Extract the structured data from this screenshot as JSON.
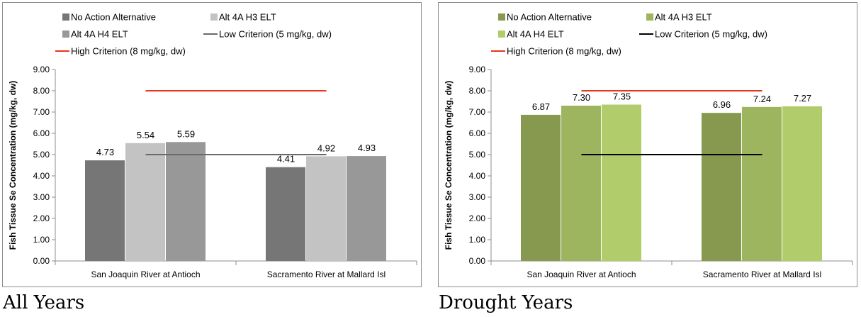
{
  "chart_data": [
    {
      "type": "bar",
      "title": "",
      "caption": "All Years",
      "xlabel": "",
      "ylabel": "Fish Tissue Se Concentration (mg/kg, dw)",
      "ylim": [
        0,
        9
      ],
      "yticks": [
        "0.00",
        "1.00",
        "2.00",
        "3.00",
        "4.00",
        "5.00",
        "6.00",
        "7.00",
        "8.00",
        "9.00"
      ],
      "categories": [
        "San Joaquin River at Antioch",
        "Sacramento River at Mallard Isl"
      ],
      "series": [
        {
          "name": "No Action Alternative",
          "values": [
            4.73,
            4.41
          ],
          "labels": [
            "4.73",
            "4.41"
          ],
          "color": "#767676"
        },
        {
          "name": "Alt 4A H3 ELT",
          "values": [
            5.54,
            4.92
          ],
          "labels": [
            "5.54",
            "4.92"
          ],
          "color": "#c3c3c3"
        },
        {
          "name": "Alt 4A H4 ELT",
          "values": [
            5.59,
            4.93
          ],
          "labels": [
            "5.59",
            "4.93"
          ],
          "color": "#989898"
        }
      ],
      "lines": [
        {
          "name": "Low Criterion (5 mg/kg, dw)",
          "value": 5,
          "color": "#6a6a6a"
        },
        {
          "name": "High Criterion (8 mg/kg, dw)",
          "value": 8,
          "color": "#e8361c"
        }
      ],
      "legend": "top",
      "grid": false
    },
    {
      "type": "bar",
      "title": "",
      "caption": "Drought Years",
      "xlabel": "",
      "ylabel": "Fish Tissue Se Concentration (mg/kg, dw)",
      "ylim": [
        0,
        9
      ],
      "yticks": [
        "0.00",
        "1.00",
        "2.00",
        "3.00",
        "4.00",
        "5.00",
        "6.00",
        "7.00",
        "8.00",
        "9.00"
      ],
      "categories": [
        "San Joaquin River at Antioch",
        "Sacramento River at Mallard Isl"
      ],
      "series": [
        {
          "name": "No Action Alternative",
          "values": [
            6.87,
            6.96
          ],
          "labels": [
            "6.87",
            "6.96"
          ],
          "color": "#86994f"
        },
        {
          "name": "Alt 4A H3 ELT",
          "values": [
            7.3,
            7.24
          ],
          "labels": [
            "7.30",
            "7.24"
          ],
          "color": "#9eb55f"
        },
        {
          "name": "Alt 4A H4 ELT",
          "values": [
            7.35,
            7.27
          ],
          "labels": [
            "7.35",
            "7.27"
          ],
          "color": "#b0cc6b"
        }
      ],
      "lines": [
        {
          "name": "Low Criterion (5 mg/kg, dw)",
          "value": 5,
          "color": "#000000"
        },
        {
          "name": "High Criterion (8 mg/kg, dw)",
          "value": 8,
          "color": "#e8361c"
        }
      ],
      "legend": "top",
      "grid": false
    }
  ]
}
